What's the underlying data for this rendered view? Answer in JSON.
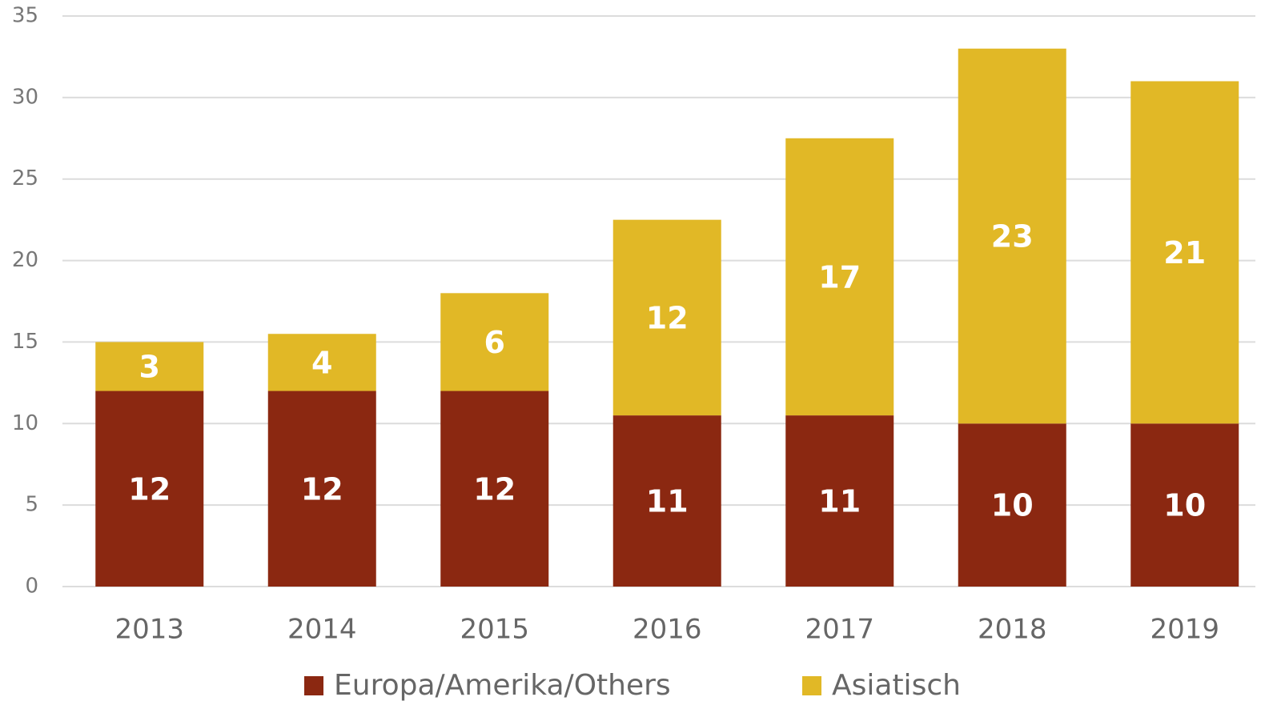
{
  "chart_data": {
    "type": "stacked_bar",
    "categories": [
      "2013",
      "2014",
      "2015",
      "2016",
      "2017",
      "2018",
      "2019"
    ],
    "series": [
      {
        "name": "Europa/Amerika/Others",
        "color": "#8b2811",
        "values": [
          12,
          12,
          12,
          10.5,
          10.5,
          10,
          10
        ],
        "value_labels": [
          "12",
          "12",
          "12",
          "11",
          "11",
          "10",
          "10"
        ]
      },
      {
        "name": "Asiatisch",
        "color": "#e1b826",
        "values": [
          3,
          3.5,
          6,
          12,
          17,
          23,
          21
        ],
        "value_labels": [
          "3",
          "4",
          "6",
          "12",
          "17",
          "23",
          "21"
        ]
      }
    ],
    "ylim": [
      0,
      35
    ],
    "yticks": [
      0,
      5,
      10,
      15,
      20,
      25,
      30,
      35
    ],
    "grid": true,
    "legend": "bottom"
  }
}
